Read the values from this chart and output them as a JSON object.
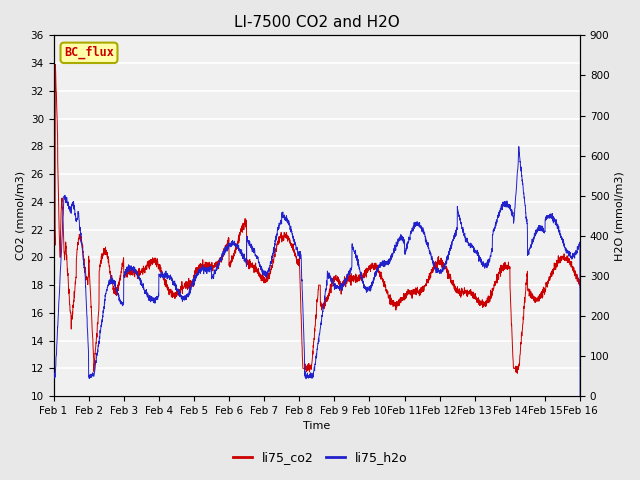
{
  "title": "LI-7500 CO2 and H2O",
  "xlabel": "Time",
  "ylabel_left": "CO2 (mmol/m3)",
  "ylabel_right": "H2O (mmol/m3)",
  "ylim_left": [
    10,
    36
  ],
  "ylim_right": [
    0,
    900
  ],
  "yticks_left": [
    10,
    12,
    14,
    16,
    18,
    20,
    22,
    24,
    26,
    28,
    30,
    32,
    34,
    36
  ],
  "yticks_right": [
    0,
    100,
    200,
    300,
    400,
    500,
    600,
    700,
    800,
    900
  ],
  "xtick_labels": [
    "Feb 1",
    "Feb 2",
    "Feb 3",
    "Feb 4",
    "Feb 5",
    "Feb 6",
    "Feb 7",
    "Feb 8",
    "Feb 9",
    "Feb 10",
    "Feb 11",
    "Feb 12",
    "Feb 13",
    "Feb 14",
    "Feb 15",
    "Feb 16"
  ],
  "legend_labels": [
    "li75_co2",
    "li75_h2o"
  ],
  "line_colors": [
    "#cc0000",
    "#2222cc"
  ],
  "bc_flux_label": "BC_flux",
  "bc_flux_bg": "#ffffaa",
  "bc_flux_border": "#aaaa00",
  "bc_flux_text_color": "#cc0000",
  "background_color": "#e8e8e8",
  "plot_bg_color": "#f0f0f0",
  "grid_color": "#ffffff",
  "title_fontsize": 11,
  "axis_fontsize": 8,
  "tick_fontsize": 7.5
}
